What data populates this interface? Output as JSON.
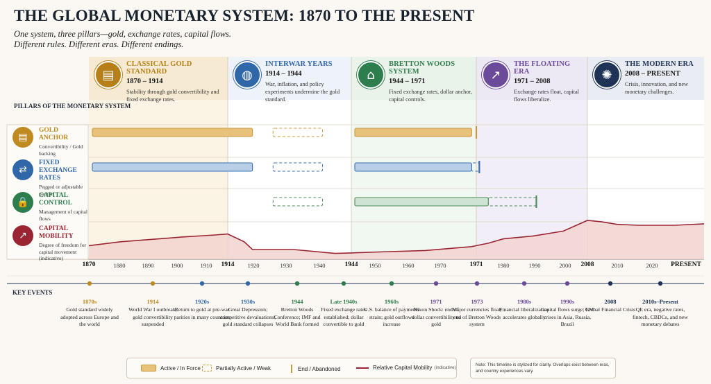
{
  "title": "THE GLOBAL MONETARY SYSTEM: 1870 TO THE PRESENT",
  "subtitle_line1": "One system, three pillars—gold, exchange rates, capital flows.",
  "subtitle_line2": "Different rules. Different eras. Different endings.",
  "pillars_heading": "PILLARS OF THE MONETARY SYSTEM",
  "eras": [
    {
      "name": "CLASSICAL GOLD STANDARD",
      "years": "1870 – 1914",
      "desc": "Stability through gold convertibility and fixed exchange rates.",
      "color": "#b67f17",
      "icon": "gold-bars-icon",
      "start": 1870,
      "end": 1914
    },
    {
      "name": "INTERWAR YEARS",
      "years": "1914 – 1944",
      "desc": "War, inflation, and policy experiments undermine the gold standard.",
      "color": "#2f67a8",
      "icon": "globe-icon",
      "start": 1914,
      "end": 1944
    },
    {
      "name": "BRETTON WOODS SYSTEM",
      "years": "1944 – 1971",
      "desc": "Fixed exchange rates, dollar anchor, capital controls.",
      "color": "#2e7d4c",
      "icon": "institution-icon",
      "start": 1944,
      "end": 1971
    },
    {
      "name": "THE FLOATING ERA",
      "years": "1971 – 2008",
      "desc": "Exchange rates float, capital flows liberalize.",
      "color": "#6b4a9a",
      "icon": "rising-chart-icon",
      "start": 1971,
      "end": 2008
    },
    {
      "name": "THE MODERN ERA",
      "years": "2008 – PRESENT",
      "desc": "Crisis, innovation, and new monetary challenges.",
      "color": "#1e3457",
      "icon": "chip-icon",
      "start": 2008,
      "end": 2024
    }
  ],
  "pillars": [
    {
      "name": "GOLD ANCHOR",
      "desc": "Convertibility / Gold backing",
      "color": "#c08a20",
      "icon": "gold-bars-icon"
    },
    {
      "name": "FIXED EXCHANGE RATES",
      "desc": "Pegged or adjustable parities",
      "color": "#2f67a8",
      "icon": "currency-exchange-icon"
    },
    {
      "name": "CAPITAL CONTROL",
      "desc": "Management of capital flows",
      "color": "#2e7d4c",
      "icon": "lock-icon"
    },
    {
      "name": "CAPITAL MOBILITY",
      "desc": "Degree of freedom for capital movement (indicative)",
      "color": "#9b2432",
      "icon": "rising-chart-icon"
    }
  ],
  "ticks": [
    {
      "year": 1870,
      "label": "1870",
      "major": true
    },
    {
      "year": 1880,
      "label": "1880",
      "major": false
    },
    {
      "year": 1890,
      "label": "1890",
      "major": false
    },
    {
      "year": 1900,
      "label": "1900",
      "major": false
    },
    {
      "year": 1910,
      "label": "1910",
      "major": false
    },
    {
      "year": 1914,
      "label": "1914",
      "major": true
    },
    {
      "year": 1920,
      "label": "1920",
      "major": false
    },
    {
      "year": 1930,
      "label": "1930",
      "major": false
    },
    {
      "year": 1940,
      "label": "1940",
      "major": false
    },
    {
      "year": 1944,
      "label": "1944",
      "major": true
    },
    {
      "year": 1950,
      "label": "1950",
      "major": false
    },
    {
      "year": 1960,
      "label": "1960",
      "major": false
    },
    {
      "year": 1970,
      "label": "1970",
      "major": false
    },
    {
      "year": 1971,
      "label": "1971",
      "major": true
    },
    {
      "year": 1980,
      "label": "1980",
      "major": false
    },
    {
      "year": 1990,
      "label": "1990",
      "major": false
    },
    {
      "year": 2000,
      "label": "2000",
      "major": false
    },
    {
      "year": 2008,
      "label": "2008",
      "major": true
    },
    {
      "year": 2010,
      "label": "2010",
      "major": false
    },
    {
      "year": 2020,
      "label": "2020",
      "major": false
    },
    {
      "year": 2024,
      "label": "PRESENT",
      "major": true
    }
  ],
  "bars": [
    {
      "pillar": 0,
      "start": 1870,
      "end": 1920,
      "status": "active",
      "era": 0
    },
    {
      "pillar": 0,
      "start": 1925,
      "end": 1937,
      "status": "partial",
      "era": 1
    },
    {
      "pillar": 0,
      "start": 1944,
      "end": 1970,
      "status": "active",
      "era": 0
    },
    {
      "pillar": 0,
      "start": 1971,
      "end": 1971,
      "status": "end",
      "era": 0
    },
    {
      "pillar": 1,
      "start": 1870,
      "end": 1920,
      "status": "active",
      "era": 1
    },
    {
      "pillar": 1,
      "start": 1925,
      "end": 1937,
      "status": "partial",
      "era": 1
    },
    {
      "pillar": 1,
      "start": 1944,
      "end": 1970,
      "status": "active",
      "era": 1
    },
    {
      "pillar": 1,
      "start": 1970,
      "end": 1972,
      "status": "partial",
      "era": 1
    },
    {
      "pillar": 1,
      "start": 1972,
      "end": 1972,
      "status": "end",
      "era": 1
    },
    {
      "pillar": 2,
      "start": 1925,
      "end": 1937,
      "status": "partial",
      "era": 2
    },
    {
      "pillar": 2,
      "start": 1944,
      "end": 1975,
      "status": "active",
      "era": 2
    },
    {
      "pillar": 2,
      "start": 1975,
      "end": 1991,
      "status": "partial",
      "era": 2
    },
    {
      "pillar": 2,
      "start": 1991,
      "end": 1991,
      "status": "end",
      "era": 2
    }
  ],
  "mobility": {
    "x": [
      1870,
      1880,
      1890,
      1900,
      1910,
      1914,
      1918,
      1920,
      1930,
      1940,
      1944,
      1950,
      1960,
      1970,
      1971,
      1975,
      1980,
      1990,
      2000,
      2008,
      2010,
      2012,
      2015,
      2020,
      2024
    ],
    "y": [
      0.28,
      0.36,
      0.41,
      0.46,
      0.5,
      0.52,
      0.36,
      0.2,
      0.2,
      0.12,
      0.13,
      0.15,
      0.18,
      0.26,
      0.28,
      0.33,
      0.42,
      0.48,
      0.58,
      0.8,
      0.77,
      0.72,
      0.7,
      0.7,
      0.73
    ]
  },
  "key_events_heading": "KEY EVENTS",
  "events": [
    {
      "year": 1870,
      "date": "1870s",
      "text": "Gold standard widely adopted across Europe and the world",
      "era": 0
    },
    {
      "year": 1891,
      "date": "1914",
      "text": "World War I outbreak; gold convertibility suspended",
      "era": 0
    },
    {
      "year": 1911,
      "date": "1920s",
      "text": "Return to gold at pre-war parities in many countries",
      "era": 1
    },
    {
      "year": 1930,
      "date": "1930s",
      "text": "Great Depression; competitive devaluations; gold standard collapses",
      "era": 1
    },
    {
      "year": 1944,
      "date": "1944",
      "text": "Bretton Woods Conference; IMF and World Bank formed",
      "era": 2
    },
    {
      "year": 1960.5,
      "date": "Late 1940s",
      "text": "Fixed exchange rates established; dollar convertible to gold",
      "era": 2
    },
    {
      "year": 1976.5,
      "date": "1960s",
      "text": "U.S. balance of payments strain; gold outflows increase",
      "era": 2
    },
    {
      "year": 1992,
      "date": "1971",
      "text": "Nixon Shock: end of dollar convertibility to gold",
      "era": 3
    },
    {
      "year": 2005.5,
      "date": "1973",
      "text": "Major currencies float; end of Bretton Woods system",
      "era": 3
    },
    {
      "year": 2021,
      "date": "1980s",
      "text": "Financial liberalization accelerates globally",
      "era": 3
    },
    {
      "year": 2036,
      "date": "1990s",
      "text": "Capital flows surge; EM crises in Asia, Russia, Brazil",
      "era": 3
    },
    {
      "year": 2051,
      "date": "2008",
      "text": "Global Financial Crisis",
      "era": 4
    },
    {
      "year": 2067,
      "date": "2010s–Present",
      "text": "QE era, negative rates, fintech, CBDCs, and new monetary debates",
      "era": 4
    }
  ],
  "legend": {
    "active": "Active / In Force",
    "partial": "Partially Active / Weak",
    "end": "End / Abandoned",
    "mobility": "Relative Capital Mobility",
    "mobility_note": "(indicative)"
  },
  "note": "Note: This timeline is stylized for clarity. Overlaps exist between eras, and country experiences vary.",
  "colors": {
    "gold": "#e8c27a",
    "gold_stroke": "#c79a3e",
    "blue": "#b9cfe8",
    "blue_stroke": "#3b6fae",
    "green": "#cfe3d2",
    "green_stroke": "#4f8a5c",
    "red_line": "#9b2432",
    "red_fill": "#f2d3d0"
  }
}
